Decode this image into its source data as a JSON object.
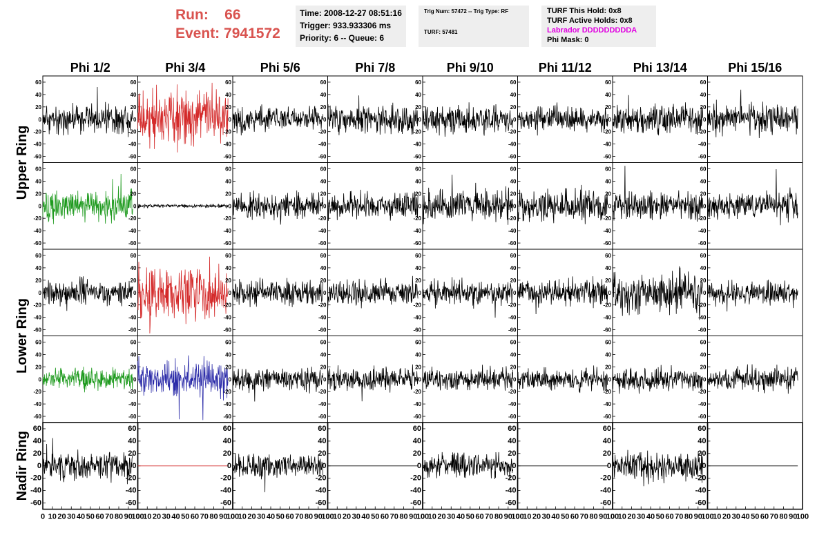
{
  "header": {
    "run_label": "Run:",
    "run_value": "66",
    "event_label": "Event:",
    "event_value": "7941572"
  },
  "info_box_time": {
    "time": "Time: 2008-12-27 08:51:16",
    "trigger": "Trigger: 933.933306 ms",
    "priority": "Priority: 6 -- Queue: 6"
  },
  "info_box_trig": {
    "trig": "Trig Num: 57472 -- Trig Type: RF",
    "turf": "TURF: 57481"
  },
  "info_box_turf": {
    "hold": "TURF This Hold: 0x8",
    "active": "TURF Active Holds: 0x8",
    "labrador": "Labrador DDDDDDDDDA",
    "phimask": "Phi Mask: 0"
  },
  "colors": {
    "black": "#000000",
    "red": "#d42a2a",
    "green": "#1e9a1e",
    "blue": "#2a2aa8",
    "title_red": "#d9534f",
    "magenta": "#e000e0",
    "info_bg": "#eeeeee"
  },
  "chart_data": {
    "type": "line",
    "columns": [
      "Phi 1/2",
      "Phi 3/4",
      "Phi 5/6",
      "Phi 7/8",
      "Phi 9/10",
      "Phi 11/12",
      "Phi 13/14",
      "Phi 15/16"
    ],
    "rows": [
      "Upper Ring",
      "Lower Ring",
      "Nadir Ring"
    ],
    "xlim": [
      0,
      100
    ],
    "ylim": [
      -70,
      70
    ],
    "x_ticks": [
      "0",
      "10",
      "20",
      "30",
      "40",
      "50",
      "60",
      "70",
      "80",
      "90",
      "100"
    ],
    "y_ticks": [
      "60",
      "40",
      "20",
      "0",
      "-20",
      "-40",
      "-60"
    ],
    "panels": [
      [
        {
          "color": "black",
          "amp": 16,
          "seed": 11
        },
        {
          "color": "red",
          "amp": 32,
          "seed": 12
        },
        {
          "color": "black",
          "amp": 14,
          "seed": 13
        },
        {
          "color": "black",
          "amp": 15,
          "seed": 14
        },
        {
          "color": "black",
          "amp": 15,
          "seed": 15
        },
        {
          "color": "black",
          "amp": 14,
          "seed": 16
        },
        {
          "color": "black",
          "amp": 15,
          "seed": 17
        },
        {
          "color": "black",
          "amp": 16,
          "seed": 18
        }
      ],
      [
        {
          "color": "green",
          "amp": 17,
          "seed": 21
        },
        {
          "color": "black",
          "amp": 2,
          "seed": 22
        },
        {
          "color": "black",
          "amp": 15,
          "seed": 23
        },
        {
          "color": "black",
          "amp": 15,
          "seed": 24
        },
        {
          "color": "black",
          "amp": 17,
          "seed": 25
        },
        {
          "color": "black",
          "amp": 18,
          "seed": 26
        },
        {
          "color": "black",
          "amp": 16,
          "seed": 27
        },
        {
          "color": "black",
          "amp": 15,
          "seed": 28
        }
      ],
      [
        {
          "color": "black",
          "amp": 14,
          "seed": 31
        },
        {
          "color": "red",
          "amp": 30,
          "seed": 32
        },
        {
          "color": "black",
          "amp": 14,
          "seed": 33
        },
        {
          "color": "black",
          "amp": 14,
          "seed": 34
        },
        {
          "color": "black",
          "amp": 14,
          "seed": 35
        },
        {
          "color": "black",
          "amp": 15,
          "seed": 36
        },
        {
          "color": "black",
          "amp": 22,
          "seed": 37
        },
        {
          "color": "black",
          "amp": 13,
          "seed": 38
        }
      ],
      [
        {
          "color": "green",
          "amp": 12,
          "seed": 41
        },
        {
          "color": "blue",
          "amp": 20,
          "seed": 42
        },
        {
          "color": "black",
          "amp": 13,
          "seed": 43
        },
        {
          "color": "black",
          "amp": 13,
          "seed": 44
        },
        {
          "color": "black",
          "amp": 12,
          "seed": 45
        },
        {
          "color": "black",
          "amp": 12,
          "seed": 46
        },
        {
          "color": "black",
          "amp": 13,
          "seed": 47
        },
        {
          "color": "black",
          "amp": 14,
          "seed": 48
        }
      ],
      [
        {
          "color": "black",
          "amp": 15,
          "seed": 51
        },
        {
          "color": "red",
          "amp": 0,
          "seed": 52
        },
        {
          "color": "black",
          "amp": 14,
          "seed": 53
        },
        {
          "color": "black",
          "amp": 0,
          "seed": 54
        },
        {
          "color": "black",
          "amp": 14,
          "seed": 55
        },
        {
          "color": "black",
          "amp": 0,
          "seed": 56
        },
        {
          "color": "black",
          "amp": 16,
          "seed": 57
        },
        {
          "color": "black",
          "amp": 0,
          "seed": 58
        }
      ]
    ]
  }
}
